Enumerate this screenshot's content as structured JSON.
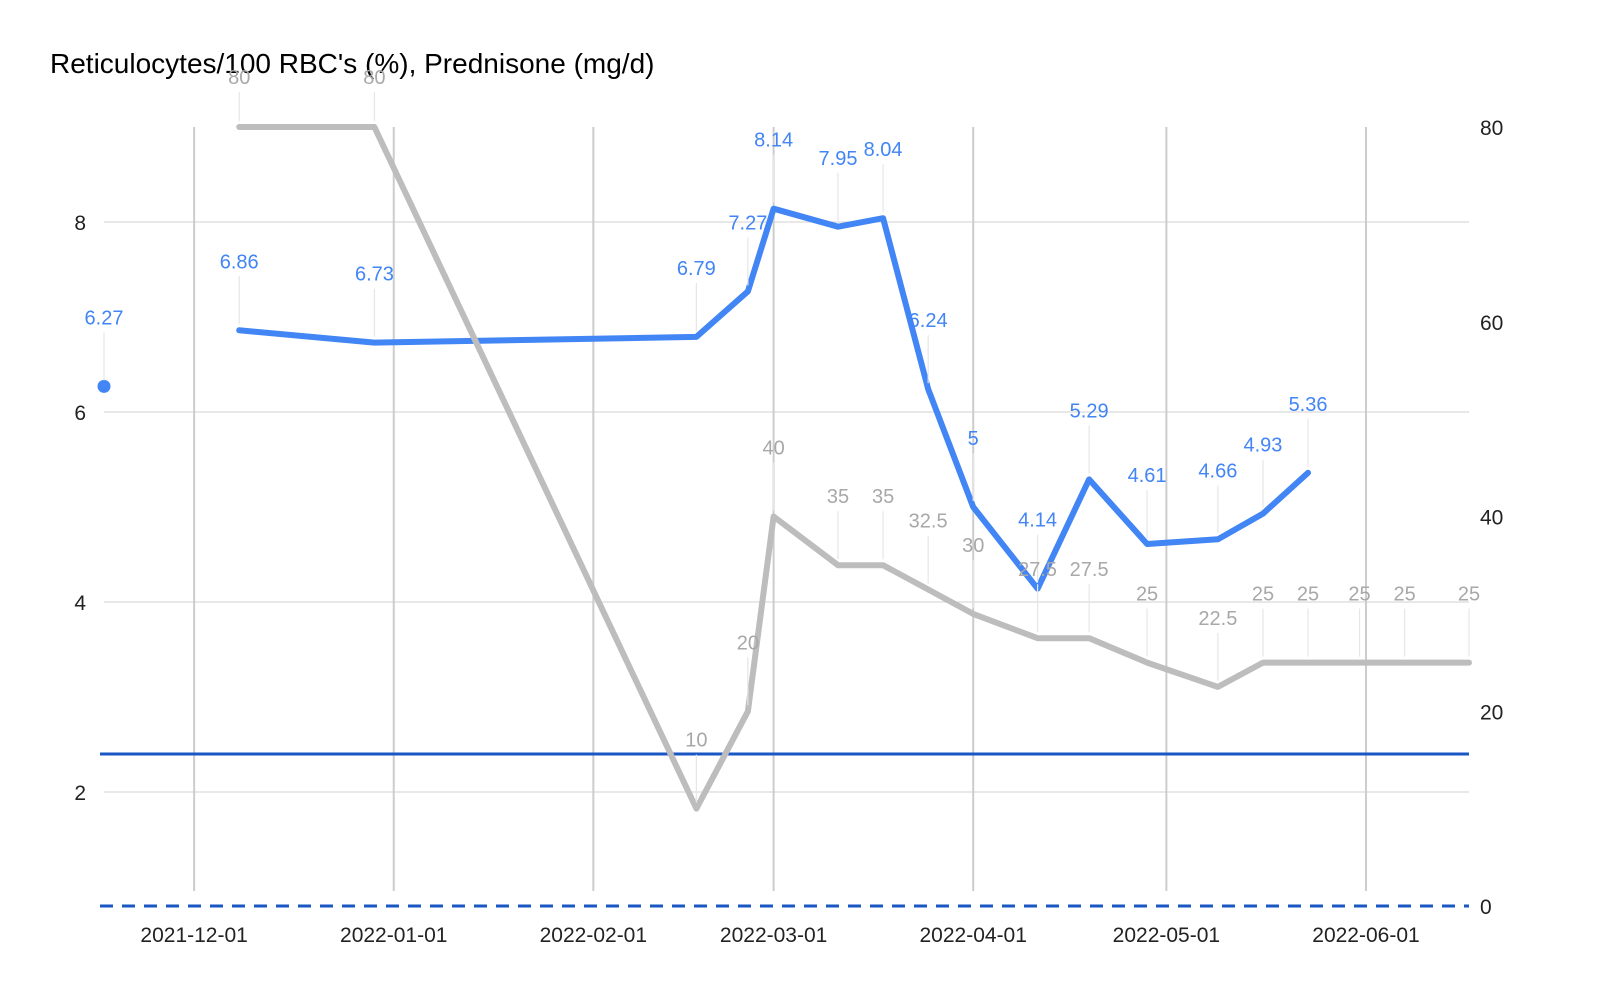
{
  "chart_data": {
    "type": "line",
    "title": "Reticulocytes/100 RBC's (%), Prednisone (mg/d)",
    "x_type": "date",
    "xlim": [
      "2021-11-17",
      "2022-06-17"
    ],
    "x_ticks": [
      "2021-12-01",
      "2022-01-01",
      "2022-02-01",
      "2022-03-01",
      "2022-04-01",
      "2022-05-01",
      "2022-06-01"
    ],
    "y_left": {
      "ylim": [
        0.8,
        9
      ],
      "ticks": [
        2,
        4,
        6,
        8
      ]
    },
    "y_right": {
      "ylim": [
        0,
        80
      ],
      "ticks": [
        0,
        20,
        40,
        60,
        80
      ]
    },
    "grid": true,
    "colors": {
      "reticulocytes": "#4285f4",
      "prednisone": "#bdbdbd",
      "reticulocytes_label": "#4285f4",
      "prednisone_label": "#a8a8a8",
      "reference_lines": "#1a56c4"
    },
    "series": [
      {
        "axis": "left",
        "points": [
          {
            "x": "2021-11-17",
            "y": 6.27
          },
          {
            "x": "2021-12-08",
            "y": 6.86
          },
          {
            "x": "2021-12-29",
            "y": 6.73
          },
          {
            "x": "2022-02-17",
            "y": 6.79
          },
          {
            "x": "2022-02-25",
            "y": 7.27
          },
          {
            "x": "2022-03-01",
            "y": 8.14
          },
          {
            "x": "2022-03-11",
            "y": 7.95
          },
          {
            "x": "2022-03-18",
            "y": 8.04
          },
          {
            "x": "2022-03-25",
            "y": 6.24
          },
          {
            "x": "2022-04-01",
            "y": 5
          },
          {
            "x": "2022-04-11",
            "y": 4.14
          },
          {
            "x": "2022-04-19",
            "y": 5.29
          },
          {
            "x": "2022-04-28",
            "y": 4.61
          },
          {
            "x": "2022-05-09",
            "y": 4.66
          },
          {
            "x": "2022-05-16",
            "y": 4.93
          },
          {
            "x": "2022-05-23",
            "y": 5.36
          }
        ]
      },
      {
        "axis": "right",
        "points": [
          {
            "x": "2021-12-08",
            "y": 80
          },
          {
            "x": "2021-12-29",
            "y": 80
          },
          {
            "x": "2022-02-17",
            "y": 10
          },
          {
            "x": "2022-02-25",
            "y": 20
          },
          {
            "x": "2022-03-01",
            "y": 40
          },
          {
            "x": "2022-03-11",
            "y": 35
          },
          {
            "x": "2022-03-18",
            "y": 35
          },
          {
            "x": "2022-03-25",
            "y": 32.5
          },
          {
            "x": "2022-04-01",
            "y": 30
          },
          {
            "x": "2022-04-11",
            "y": 27.5
          },
          {
            "x": "2022-04-19",
            "y": 27.5
          },
          {
            "x": "2022-04-28",
            "y": 25
          },
          {
            "x": "2022-05-09",
            "y": 22.5
          },
          {
            "x": "2022-05-16",
            "y": 25
          },
          {
            "x": "2022-05-23",
            "y": 25
          },
          {
            "x": "2022-05-31",
            "y": 25
          },
          {
            "x": "2022-06-07",
            "y": 25
          },
          {
            "x": "2022-06-17",
            "y": 25
          }
        ]
      }
    ],
    "reference_lines": [
      {
        "axis": "left",
        "y": 2.4,
        "style": "solid"
      },
      {
        "axis": "left",
        "y": 0.8,
        "style": "dashed"
      }
    ]
  }
}
